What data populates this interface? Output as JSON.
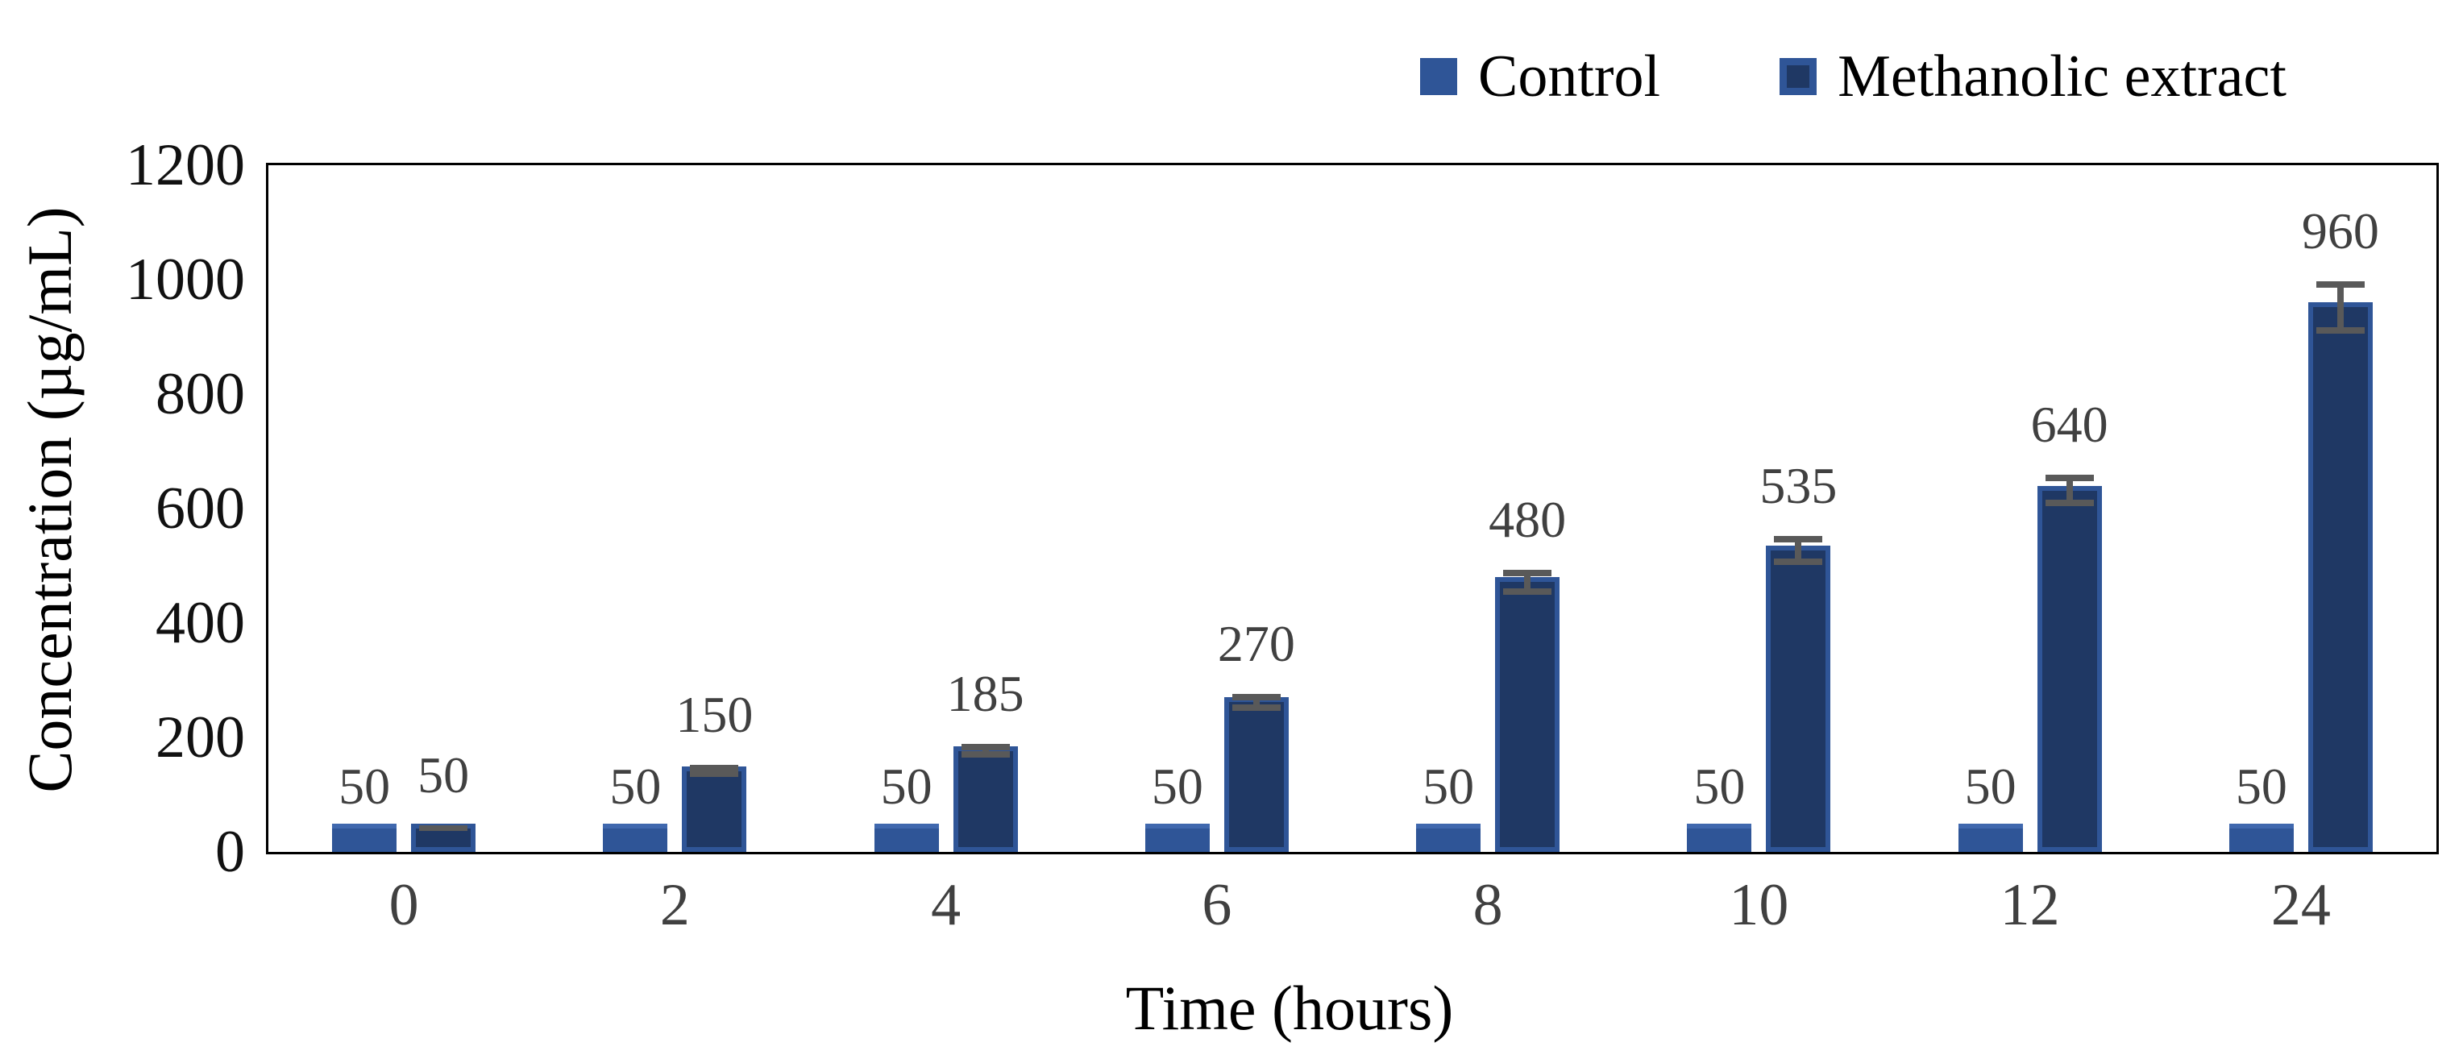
{
  "chart_data": {
    "type": "bar",
    "title": "",
    "xlabel": "Time (hours)",
    "ylabel": "Concentration (µg/mL)",
    "categories": [
      "0",
      "2",
      "4",
      "6",
      "8",
      "10",
      "12",
      "24"
    ],
    "series": [
      {
        "name": "Control",
        "fill": "#2F5597",
        "edge": "#4068AE",
        "values": [
          50,
          50,
          50,
          50,
          50,
          50,
          50,
          50
        ],
        "errors": [
          0,
          0,
          0,
          0,
          0,
          0,
          0,
          0
        ]
      },
      {
        "name": "Methanolic extract",
        "fill": "#1F3864",
        "edge": "#2F5597",
        "values": [
          50,
          150,
          185,
          270,
          480,
          535,
          640,
          960
        ],
        "errors": [
          5,
          10,
          12,
          15,
          22,
          25,
          28,
          46
        ]
      }
    ],
    "ylim": [
      0,
      1200
    ],
    "y_ticks": [
      "0",
      "200",
      "400",
      "600",
      "800",
      "1000",
      "1200"
    ],
    "grid": false,
    "legend_position": "top-right",
    "data_labels": true,
    "error_bar_color": "#595959",
    "data_label_color": "#404040",
    "x_tick_color": "#404040",
    "y_tick_color": "#111111",
    "plot_border_color": "#000000"
  }
}
